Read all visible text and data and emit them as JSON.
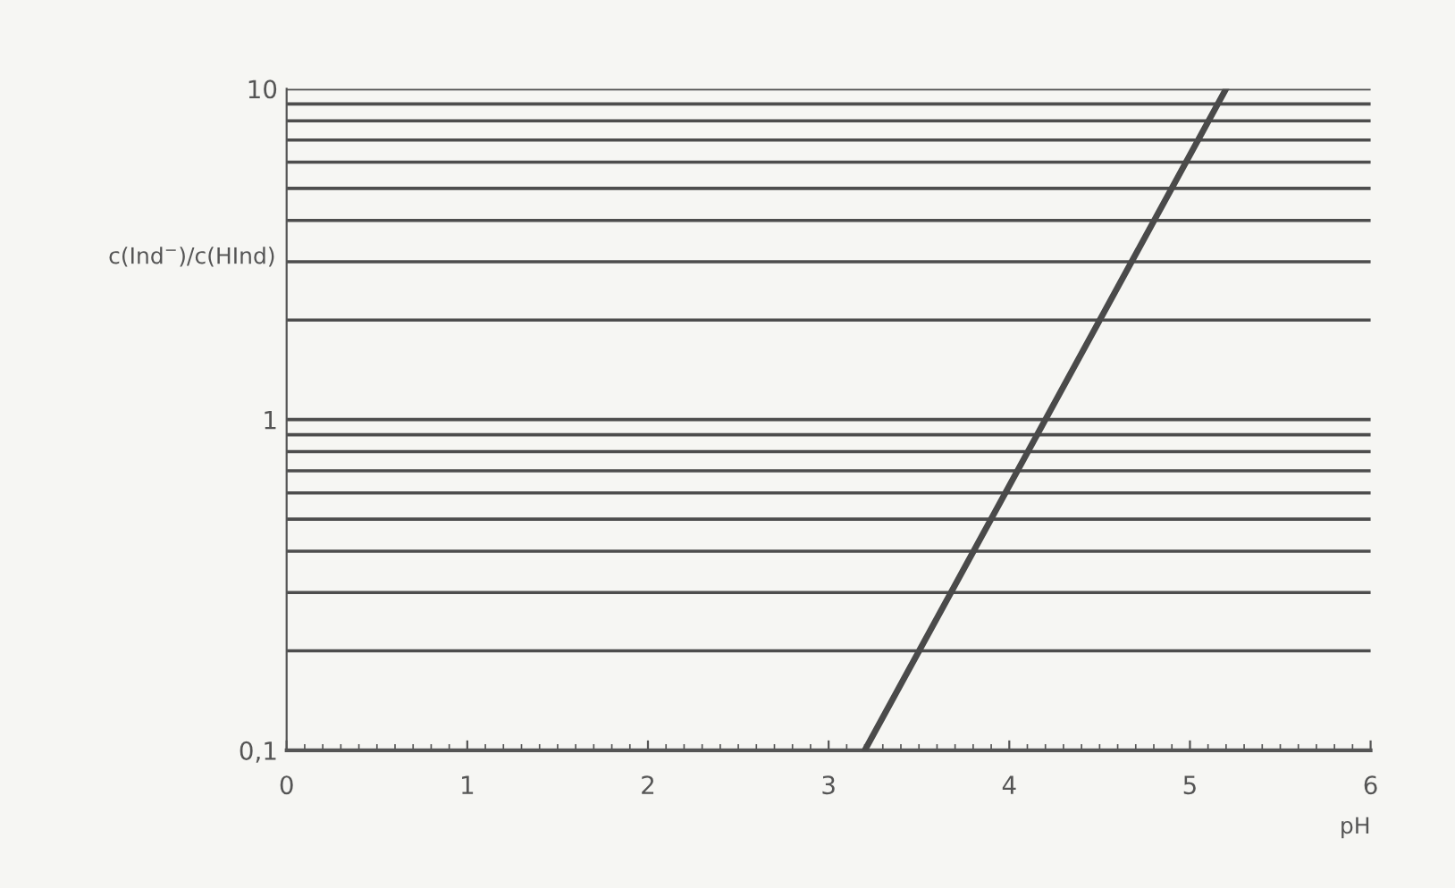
{
  "chart_data": {
    "type": "line",
    "xlabel": "pH",
    "ylabel": "c(Ind$^{−}$)/c(HInd)",
    "series": [
      {
        "color": "#4a4a4a",
        "x": [
          3.2,
          5.2
        ],
        "values": [
          0.1,
          10
        ]
      }
    ],
    "log": "y",
    "xlim": [
      0,
      6
    ],
    "ylim": [
      0.1,
      10
    ],
    "xticks": [
      0,
      1,
      2,
      3,
      4,
      5,
      6
    ],
    "yticks": [
      {
        "value": 0.1,
        "label": "0,1"
      },
      1,
      10
    ],
    "grid": "y",
    "marker": "none",
    "line_style": "solid"
  }
}
